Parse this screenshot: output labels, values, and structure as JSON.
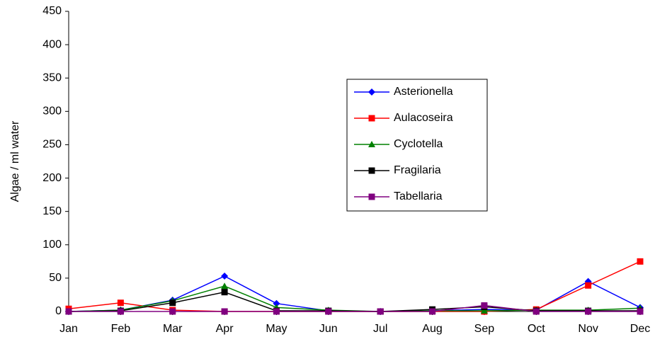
{
  "chart_data": {
    "type": "line",
    "y_label": "Algae / ml water",
    "categories": [
      "Jan",
      "Feb",
      "Mar",
      "Apr",
      "May",
      "Jun",
      "Jul",
      "Aug",
      "Sep",
      "Oct",
      "Nov",
      "Dec"
    ],
    "series": [
      {
        "name": "Asterionella",
        "color": "#0000ff",
        "marker": "diamond",
        "values": [
          0,
          2,
          17,
          53,
          12,
          1,
          0,
          1,
          3,
          2,
          45,
          6
        ]
      },
      {
        "name": "Aulacoseira",
        "color": "#ff0000",
        "marker": "square",
        "values": [
          4,
          13,
          2,
          0,
          0,
          0,
          0,
          0,
          0,
          3,
          39,
          75
        ]
      },
      {
        "name": "Cyclotella",
        "color": "#008000",
        "marker": "triangle",
        "values": [
          0,
          2,
          16,
          38,
          6,
          2,
          0,
          1,
          1,
          2,
          2,
          5
        ]
      },
      {
        "name": "Fragilaria",
        "color": "#000000",
        "marker": "square",
        "values": [
          0,
          1,
          13,
          29,
          1,
          1,
          0,
          3,
          7,
          1,
          1,
          1
        ]
      },
      {
        "name": "Tabellaria",
        "color": "#800080",
        "marker": "square",
        "values": [
          0,
          0,
          0,
          0,
          0,
          0,
          0,
          0,
          9,
          0,
          0,
          0
        ]
      }
    ],
    "ylim": [
      0,
      450
    ],
    "yticks": [
      0,
      50,
      100,
      150,
      200,
      250,
      300,
      350,
      400,
      450
    ],
    "grid": false
  }
}
